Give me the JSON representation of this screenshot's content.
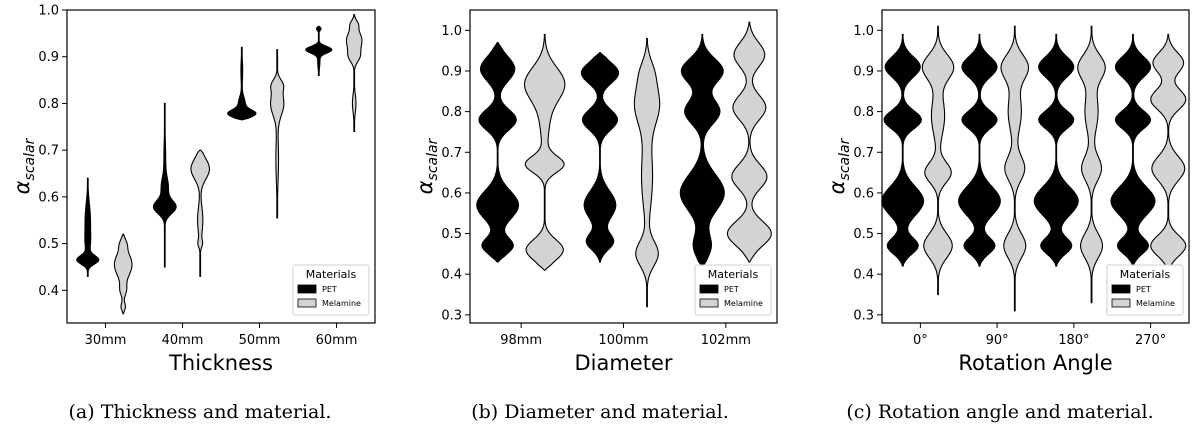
{
  "ylabel_base": "α",
  "ylabel_sub": "scalar",
  "legend": {
    "title": "Materials",
    "entries": [
      {
        "name": "PET",
        "color": "#000000"
      },
      {
        "name": "Melamine",
        "color": "#d3d3d3"
      }
    ]
  },
  "chart_data": [
    {
      "type": "violin",
      "caption": "(a) Thickness and material.",
      "xlabel": "Thickness",
      "ylabel": "α_scalar",
      "categories": [
        "30mm",
        "40mm",
        "50mm",
        "60mm"
      ],
      "ylim": [
        0.33,
        1.0
      ],
      "yticks": [
        0.4,
        0.5,
        0.6,
        0.7,
        0.8,
        0.9,
        1.0
      ],
      "legend_position": "lower-right",
      "series": [
        {
          "name": "PET",
          "color": "#000000",
          "violins": [
            {
              "min": 0.43,
              "max": 0.64,
              "modes": [
                [
                  0.465,
                  0.48,
                  0.009
                ],
                [
                  0.55,
                  0.12,
                  0.035
                ],
                [
                  0.5,
                  0.08,
                  0.02
                ]
              ]
            },
            {
              "min": 0.45,
              "max": 0.8,
              "modes": [
                [
                  0.578,
                  0.5,
                  0.014
                ],
                [
                  0.62,
                  0.15,
                  0.02
                ],
                [
                  0.68,
                  0.04,
                  0.04
                ]
              ]
            },
            {
              "min": 0.765,
              "max": 0.92,
              "modes": [
                [
                  0.778,
                  0.6,
                  0.008
                ],
                [
                  0.8,
                  0.15,
                  0.014
                ],
                [
                  0.87,
                  0.04,
                  0.025
                ]
              ]
            },
            {
              "min": 0.86,
              "max": 0.965,
              "modes": [
                [
                  0.915,
                  0.58,
                  0.007
                ],
                [
                  0.96,
                  0.1,
                  0.004
                ],
                [
                  0.89,
                  0.05,
                  0.015
                ]
              ]
            }
          ]
        },
        {
          "name": "Melamine",
          "color": "#d3d3d3",
          "violins": [
            {
              "min": 0.35,
              "max": 0.52,
              "modes": [
                [
                  0.455,
                  0.4,
                  0.025
                ],
                [
                  0.4,
                  0.12,
                  0.012
                ],
                [
                  0.365,
                  0.1,
                  0.008
                ],
                [
                  0.5,
                  0.1,
                  0.01
                ]
              ]
            },
            {
              "min": 0.43,
              "max": 0.7,
              "modes": [
                [
                  0.66,
                  0.42,
                  0.022
                ],
                [
                  0.55,
                  0.12,
                  0.03
                ],
                [
                  0.5,
                  0.08,
                  0.008
                ]
              ]
            },
            {
              "min": 0.555,
              "max": 0.915,
              "modes": [
                [
                  0.8,
                  0.3,
                  0.025
                ],
                [
                  0.84,
                  0.2,
                  0.012
                ],
                [
                  0.68,
                  0.06,
                  0.05
                ]
              ]
            },
            {
              "min": 0.74,
              "max": 0.99,
              "modes": [
                [
                  0.935,
                  0.35,
                  0.02
                ],
                [
                  0.9,
                  0.2,
                  0.012
                ],
                [
                  0.8,
                  0.08,
                  0.02
                ],
                [
                  0.97,
                  0.12,
                  0.008
                ]
              ]
            }
          ]
        }
      ]
    },
    {
      "type": "violin",
      "caption": "(b) Diameter and material.",
      "xlabel": "Diameter",
      "ylabel": "α_scalar",
      "categories": [
        "98mm",
        "100mm",
        "102mm"
      ],
      "ylim": [
        0.28,
        1.05
      ],
      "yticks": [
        0.3,
        0.4,
        0.5,
        0.6,
        0.7,
        0.8,
        0.9,
        1.0
      ],
      "legend_position": "lower-right",
      "series": [
        {
          "name": "PET",
          "color": "#000000",
          "violins": [
            {
              "min": 0.43,
              "max": 0.97,
              "modes": [
                [
                  0.905,
                  0.78,
                  0.03
                ],
                [
                  0.78,
                  0.85,
                  0.025
                ],
                [
                  0.57,
                  0.95,
                  0.035
                ],
                [
                  0.47,
                  0.7,
                  0.02
                ]
              ]
            },
            {
              "min": 0.43,
              "max": 0.945,
              "modes": [
                [
                  0.895,
                  0.85,
                  0.025
                ],
                [
                  0.78,
                  0.8,
                  0.025
                ],
                [
                  0.57,
                  0.72,
                  0.035
                ],
                [
                  0.48,
                  0.6,
                  0.02
                ]
              ]
            },
            {
              "min": 0.42,
              "max": 0.99,
              "modes": [
                [
                  0.9,
                  0.95,
                  0.03
                ],
                [
                  0.8,
                  0.8,
                  0.03
                ],
                [
                  0.6,
                  1.0,
                  0.045
                ],
                [
                  0.47,
                  0.4,
                  0.03
                ]
              ]
            }
          ]
        },
        {
          "name": "Melamine",
          "color": "#d3d3d3",
          "violins": [
            {
              "min": 0.41,
              "max": 0.99,
              "modes": [
                [
                  0.87,
                  0.85,
                  0.04
                ],
                [
                  0.67,
                  0.85,
                  0.02
                ],
                [
                  0.46,
                  0.85,
                  0.025
                ],
                [
                  0.78,
                  0.2,
                  0.06
                ]
              ]
            },
            {
              "min": 0.32,
              "max": 0.98,
              "modes": [
                [
                  0.82,
                  0.55,
                  0.05
                ],
                [
                  0.64,
                  0.25,
                  0.08
                ],
                [
                  0.45,
                  0.5,
                  0.03
                ],
                [
                  0.9,
                  0.2,
                  0.03
                ]
              ]
            },
            {
              "min": 0.43,
              "max": 1.02,
              "modes": [
                [
                  0.94,
                  0.7,
                  0.03
                ],
                [
                  0.81,
                  0.75,
                  0.03
                ],
                [
                  0.64,
                  0.8,
                  0.03
                ],
                [
                  0.5,
                  1.0,
                  0.03
                ]
              ]
            }
          ]
        }
      ]
    },
    {
      "type": "violin",
      "caption": "(c) Rotation angle and material.",
      "xlabel": "Rotation Angle",
      "ylabel": "α_scalar",
      "categories": [
        "0°",
        "90°",
        "180°",
        "270°"
      ],
      "ylim": [
        0.28,
        1.05
      ],
      "yticks": [
        0.3,
        0.4,
        0.5,
        0.6,
        0.7,
        0.8,
        0.9,
        1.0
      ],
      "legend_position": "lower-right",
      "series": [
        {
          "name": "PET",
          "color": "#000000",
          "violins": [
            {
              "min": 0.42,
              "max": 0.99,
              "modes": [
                [
                  0.91,
                  0.8,
                  0.025
                ],
                [
                  0.78,
                  0.85,
                  0.022
                ],
                [
                  0.58,
                  0.95,
                  0.035
                ],
                [
                  0.47,
                  0.7,
                  0.02
                ]
              ]
            },
            {
              "min": 0.42,
              "max": 0.99,
              "modes": [
                [
                  0.91,
                  0.8,
                  0.025
                ],
                [
                  0.78,
                  0.8,
                  0.022
                ],
                [
                  0.58,
                  0.95,
                  0.035
                ],
                [
                  0.47,
                  0.7,
                  0.02
                ]
              ]
            },
            {
              "min": 0.42,
              "max": 0.99,
              "modes": [
                [
                  0.91,
                  0.8,
                  0.025
                ],
                [
                  0.78,
                  0.8,
                  0.022
                ],
                [
                  0.58,
                  1.0,
                  0.035
                ],
                [
                  0.47,
                  0.7,
                  0.02
                ]
              ]
            },
            {
              "min": 0.42,
              "max": 0.99,
              "modes": [
                [
                  0.91,
                  0.8,
                  0.025
                ],
                [
                  0.78,
                  0.8,
                  0.022
                ],
                [
                  0.58,
                  1.0,
                  0.035
                ],
                [
                  0.47,
                  0.7,
                  0.02
                ]
              ]
            }
          ]
        },
        {
          "name": "Melamine",
          "color": "#d3d3d3",
          "violins": [
            {
              "min": 0.35,
              "max": 1.01,
              "modes": [
                [
                  0.91,
                  0.7,
                  0.03
                ],
                [
                  0.65,
                  0.6,
                  0.025
                ],
                [
                  0.47,
                  0.65,
                  0.03
                ],
                [
                  0.79,
                  0.3,
                  0.05
                ]
              ]
            },
            {
              "min": 0.31,
              "max": 1.01,
              "modes": [
                [
                  0.91,
                  0.6,
                  0.03
                ],
                [
                  0.66,
                  0.45,
                  0.03
                ],
                [
                  0.47,
                  0.5,
                  0.03
                ],
                [
                  0.8,
                  0.3,
                  0.05
                ]
              ]
            },
            {
              "min": 0.33,
              "max": 1.01,
              "modes": [
                [
                  0.91,
                  0.6,
                  0.03
                ],
                [
                  0.66,
                  0.45,
                  0.03
                ],
                [
                  0.47,
                  0.5,
                  0.03
                ],
                [
                  0.8,
                  0.3,
                  0.05
                ]
              ]
            },
            {
              "min": 0.33,
              "max": 0.99,
              "modes": [
                [
                  0.92,
                  0.7,
                  0.025
                ],
                [
                  0.83,
                  0.8,
                  0.025
                ],
                [
                  0.66,
                  0.75,
                  0.03
                ],
                [
                  0.47,
                  0.8,
                  0.025
                ]
              ]
            }
          ]
        }
      ]
    }
  ]
}
